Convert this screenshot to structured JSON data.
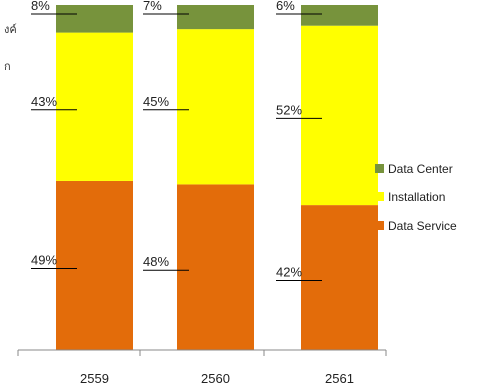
{
  "page_fragments": [
    "งค์",
    "ก"
  ],
  "chart_data": {
    "type": "bar",
    "stacked": true,
    "percent": true,
    "categories": [
      "2559",
      "2560",
      "2561"
    ],
    "series": [
      {
        "name": "Data Service",
        "values": [
          49,
          48,
          42
        ],
        "color": "#E36C0A"
      },
      {
        "name": "Installation",
        "values": [
          43,
          45,
          52
        ],
        "color": "#FFFF00"
      },
      {
        "name": "Data Center",
        "values": [
          8,
          7,
          6
        ],
        "color": "#77933C"
      }
    ],
    "data_labels": [
      [
        "49%",
        "48%",
        "42%"
      ],
      [
        "43%",
        "45%",
        "52%"
      ],
      [
        "8%",
        "7%",
        "6%"
      ]
    ],
    "legend_order": [
      "Data Center",
      "Installation",
      "Data Service"
    ],
    "legend_position": "right",
    "ylim": [
      0,
      100
    ],
    "grid": false,
    "title": "",
    "xlabel": "",
    "ylabel": ""
  }
}
